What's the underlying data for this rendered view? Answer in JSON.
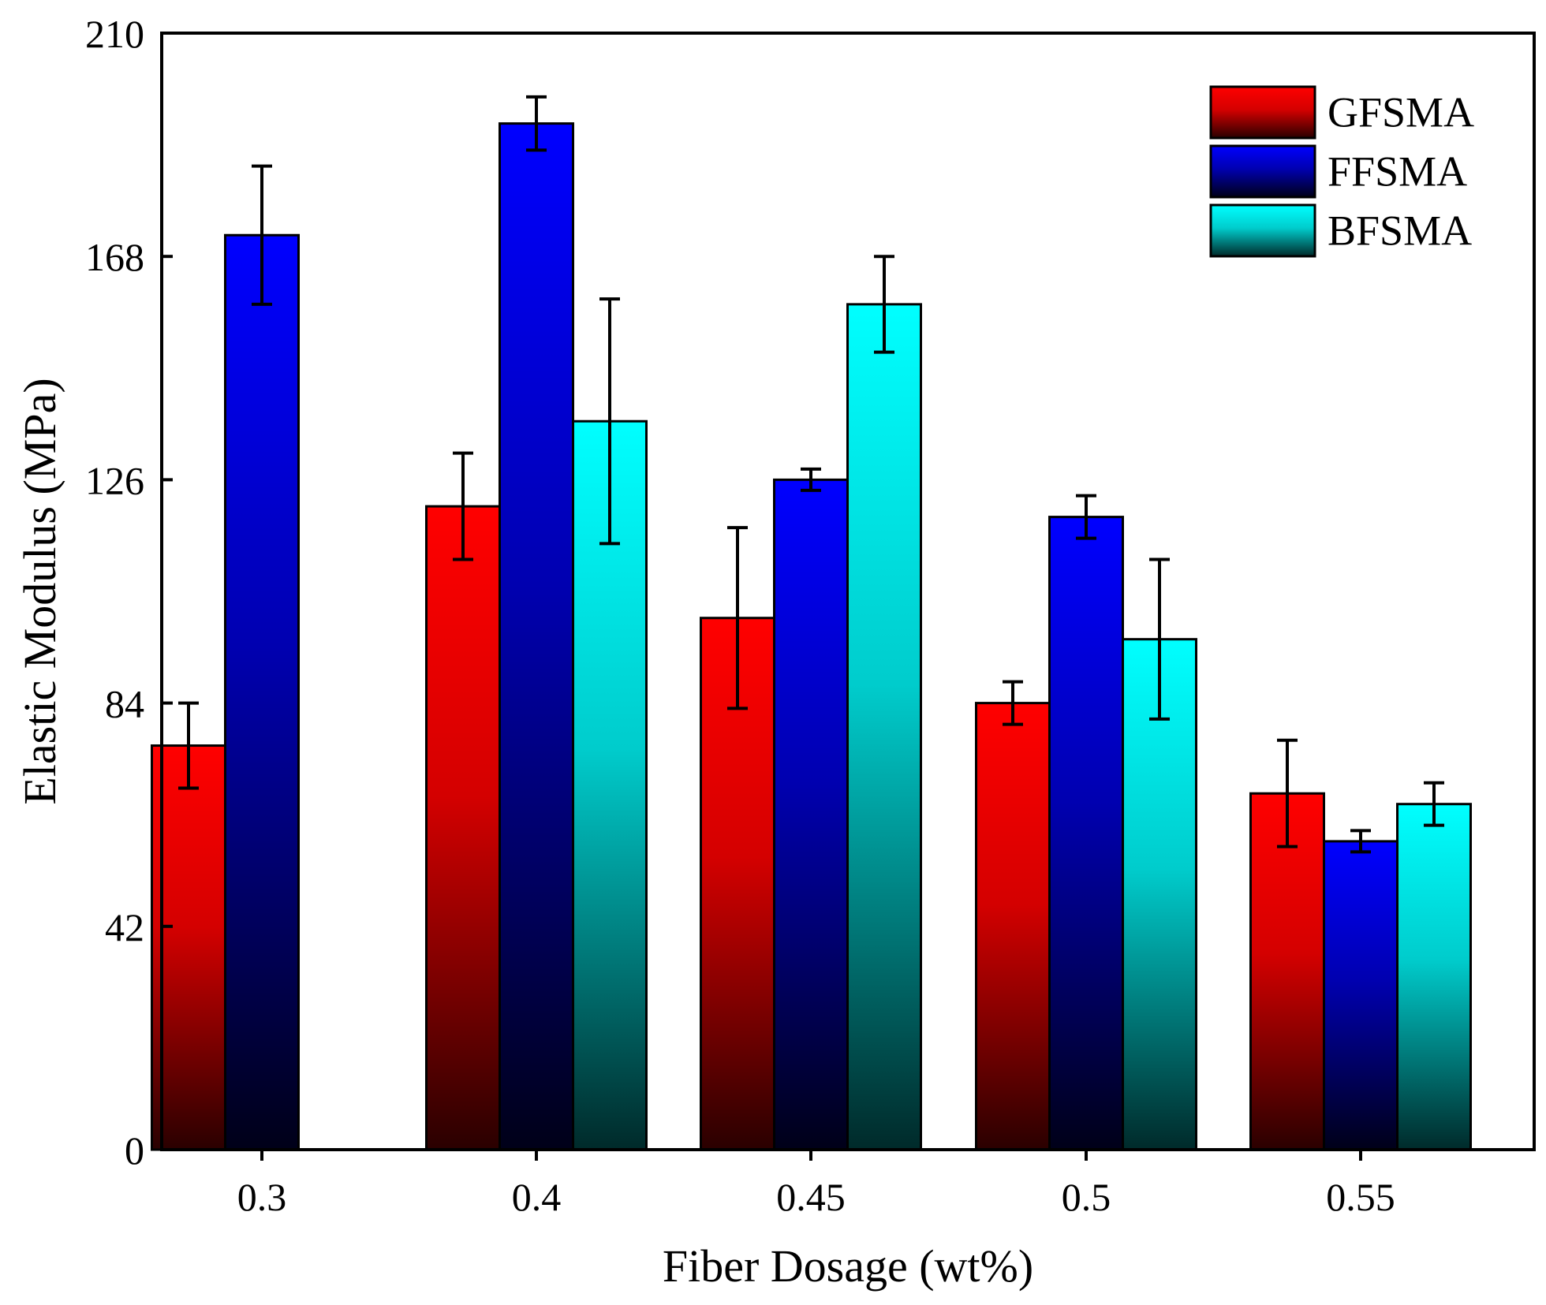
{
  "chart_data": {
    "type": "bar",
    "title": "",
    "xlabel": "Fiber Dosage (wt%)",
    "ylabel": "Elastic Modulus (MPa)",
    "categories": [
      "0.3",
      "0.4",
      "0.45",
      "0.5",
      "0.55"
    ],
    "ylim": [
      0,
      210
    ],
    "yticks": [
      "0",
      "42",
      "84",
      "126",
      "168",
      "210"
    ],
    "grid": false,
    "legend_position": "top-right",
    "series": [
      {
        "name": "GFSMA",
        "color": "#ff0000",
        "values": [
          76,
          121,
          100,
          84,
          67
        ],
        "errors": [
          8,
          10,
          17,
          4,
          10
        ]
      },
      {
        "name": "FFSMA",
        "color": "#0000ff",
        "values": [
          172,
          193,
          126,
          119,
          58
        ],
        "errors": [
          13,
          5,
          2,
          4,
          2
        ]
      },
      {
        "name": "BFSMA",
        "color": "#00ffff",
        "values": [
          null,
          137,
          159,
          96,
          65
        ],
        "errors": [
          null,
          23,
          9,
          15,
          4
        ]
      }
    ]
  }
}
